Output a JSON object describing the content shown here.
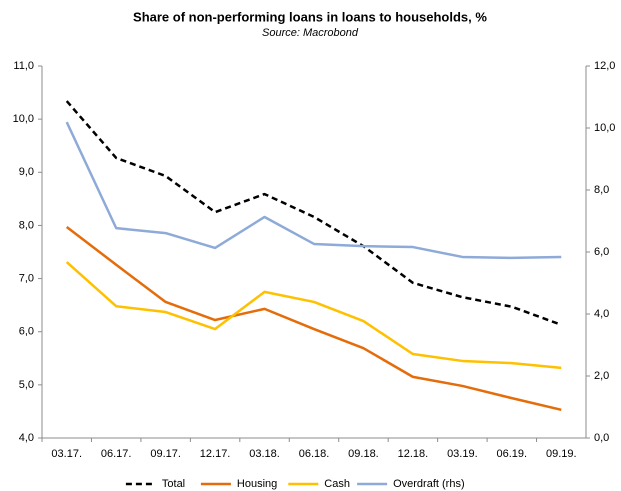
{
  "chart_data": {
    "type": "line",
    "title": "Share of non-performing loans in loans to households, %",
    "subtitle": "Source: Macrobond",
    "categories": [
      "03.17.",
      "06.17.",
      "09.17.",
      "12.17.",
      "03.18.",
      "06.18.",
      "09.18.",
      "12.18.",
      "03.19.",
      "06.19.",
      "09.19."
    ],
    "series": [
      {
        "name": "Total",
        "color": "#000000",
        "dashed": true,
        "values": [
          10.34,
          9.27,
          8.93,
          8.25,
          8.59,
          8.16,
          7.61,
          6.92,
          6.65,
          6.47,
          6.13
        ]
      },
      {
        "name": "Housing",
        "color": "#e46c0a",
        "values": [
          7.97,
          7.26,
          6.56,
          6.22,
          6.43,
          6.05,
          5.69,
          5.15,
          4.98,
          4.75,
          4.53
        ]
      },
      {
        "name": "Cash",
        "color": "#ffc000",
        "values": [
          7.31,
          6.48,
          6.37,
          6.05,
          6.75,
          6.56,
          6.2,
          5.58,
          5.45,
          5.41,
          5.32
        ]
      },
      {
        "name": "Overdraft (rhs)",
        "color": "#8eaad8",
        "axis": "y2",
        "values": [
          10.19,
          6.77,
          6.61,
          6.13,
          7.13,
          6.26,
          6.19,
          6.16,
          5.84,
          5.81,
          5.84
        ]
      }
    ],
    "ylim": [
      4,
      11
    ],
    "yticks": [
      {
        "value": 4,
        "label": "4,0"
      },
      {
        "value": 5,
        "label": "5,0"
      },
      {
        "value": 6,
        "label": "6,0"
      },
      {
        "value": 7,
        "label": "7,0"
      },
      {
        "value": 8,
        "label": "8,0"
      },
      {
        "value": 9,
        "label": "9,0"
      },
      {
        "value": 10,
        "label": "10,0"
      },
      {
        "value": 11,
        "label": "11,0"
      }
    ],
    "y2lim": [
      0,
      12
    ],
    "y2ticks": [
      {
        "value": 0,
        "label": "0,0"
      },
      {
        "value": 2,
        "label": "2,0"
      },
      {
        "value": 4,
        "label": "4,0"
      },
      {
        "value": 6,
        "label": "6,0"
      },
      {
        "value": 8,
        "label": "8,0"
      },
      {
        "value": 10,
        "label": "10,0"
      },
      {
        "value": 12,
        "label": "12,0"
      }
    ],
    "grid": false,
    "legend": "bottom"
  }
}
